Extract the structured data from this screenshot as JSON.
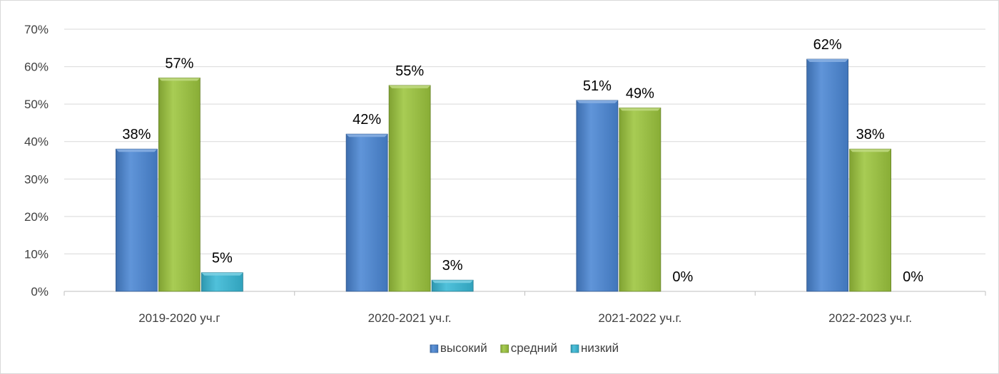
{
  "chart_data": {
    "type": "bar",
    "categories": [
      "2019-2020 уч.г",
      "2020-2021 уч.г.",
      "2021-2022 уч.г.",
      "2022-2023 уч.г."
    ],
    "series": [
      {
        "name": "высокий",
        "values": [
          38,
          42,
          51,
          62
        ],
        "labels": [
          "38%",
          "42%",
          "51%",
          "62%"
        ],
        "color": "#4A86D4"
      },
      {
        "name": "средний",
        "values": [
          57,
          55,
          49,
          38
        ],
        "labels": [
          "57%",
          "55%",
          "49%",
          "38%"
        ],
        "color": "#9CC53D"
      },
      {
        "name": "низкий",
        "values": [
          5,
          3,
          0,
          0
        ],
        "labels": [
          "5%",
          "3%",
          "0%",
          "0%"
        ],
        "color": "#38B8D6"
      }
    ],
    "ylim": [
      0,
      70
    ],
    "yticks": [
      "0%",
      "10%",
      "20%",
      "30%",
      "40%",
      "50%",
      "60%",
      "70%"
    ],
    "grid": true,
    "legend_position": "bottom",
    "title": "",
    "xlabel": "",
    "ylabel": ""
  }
}
